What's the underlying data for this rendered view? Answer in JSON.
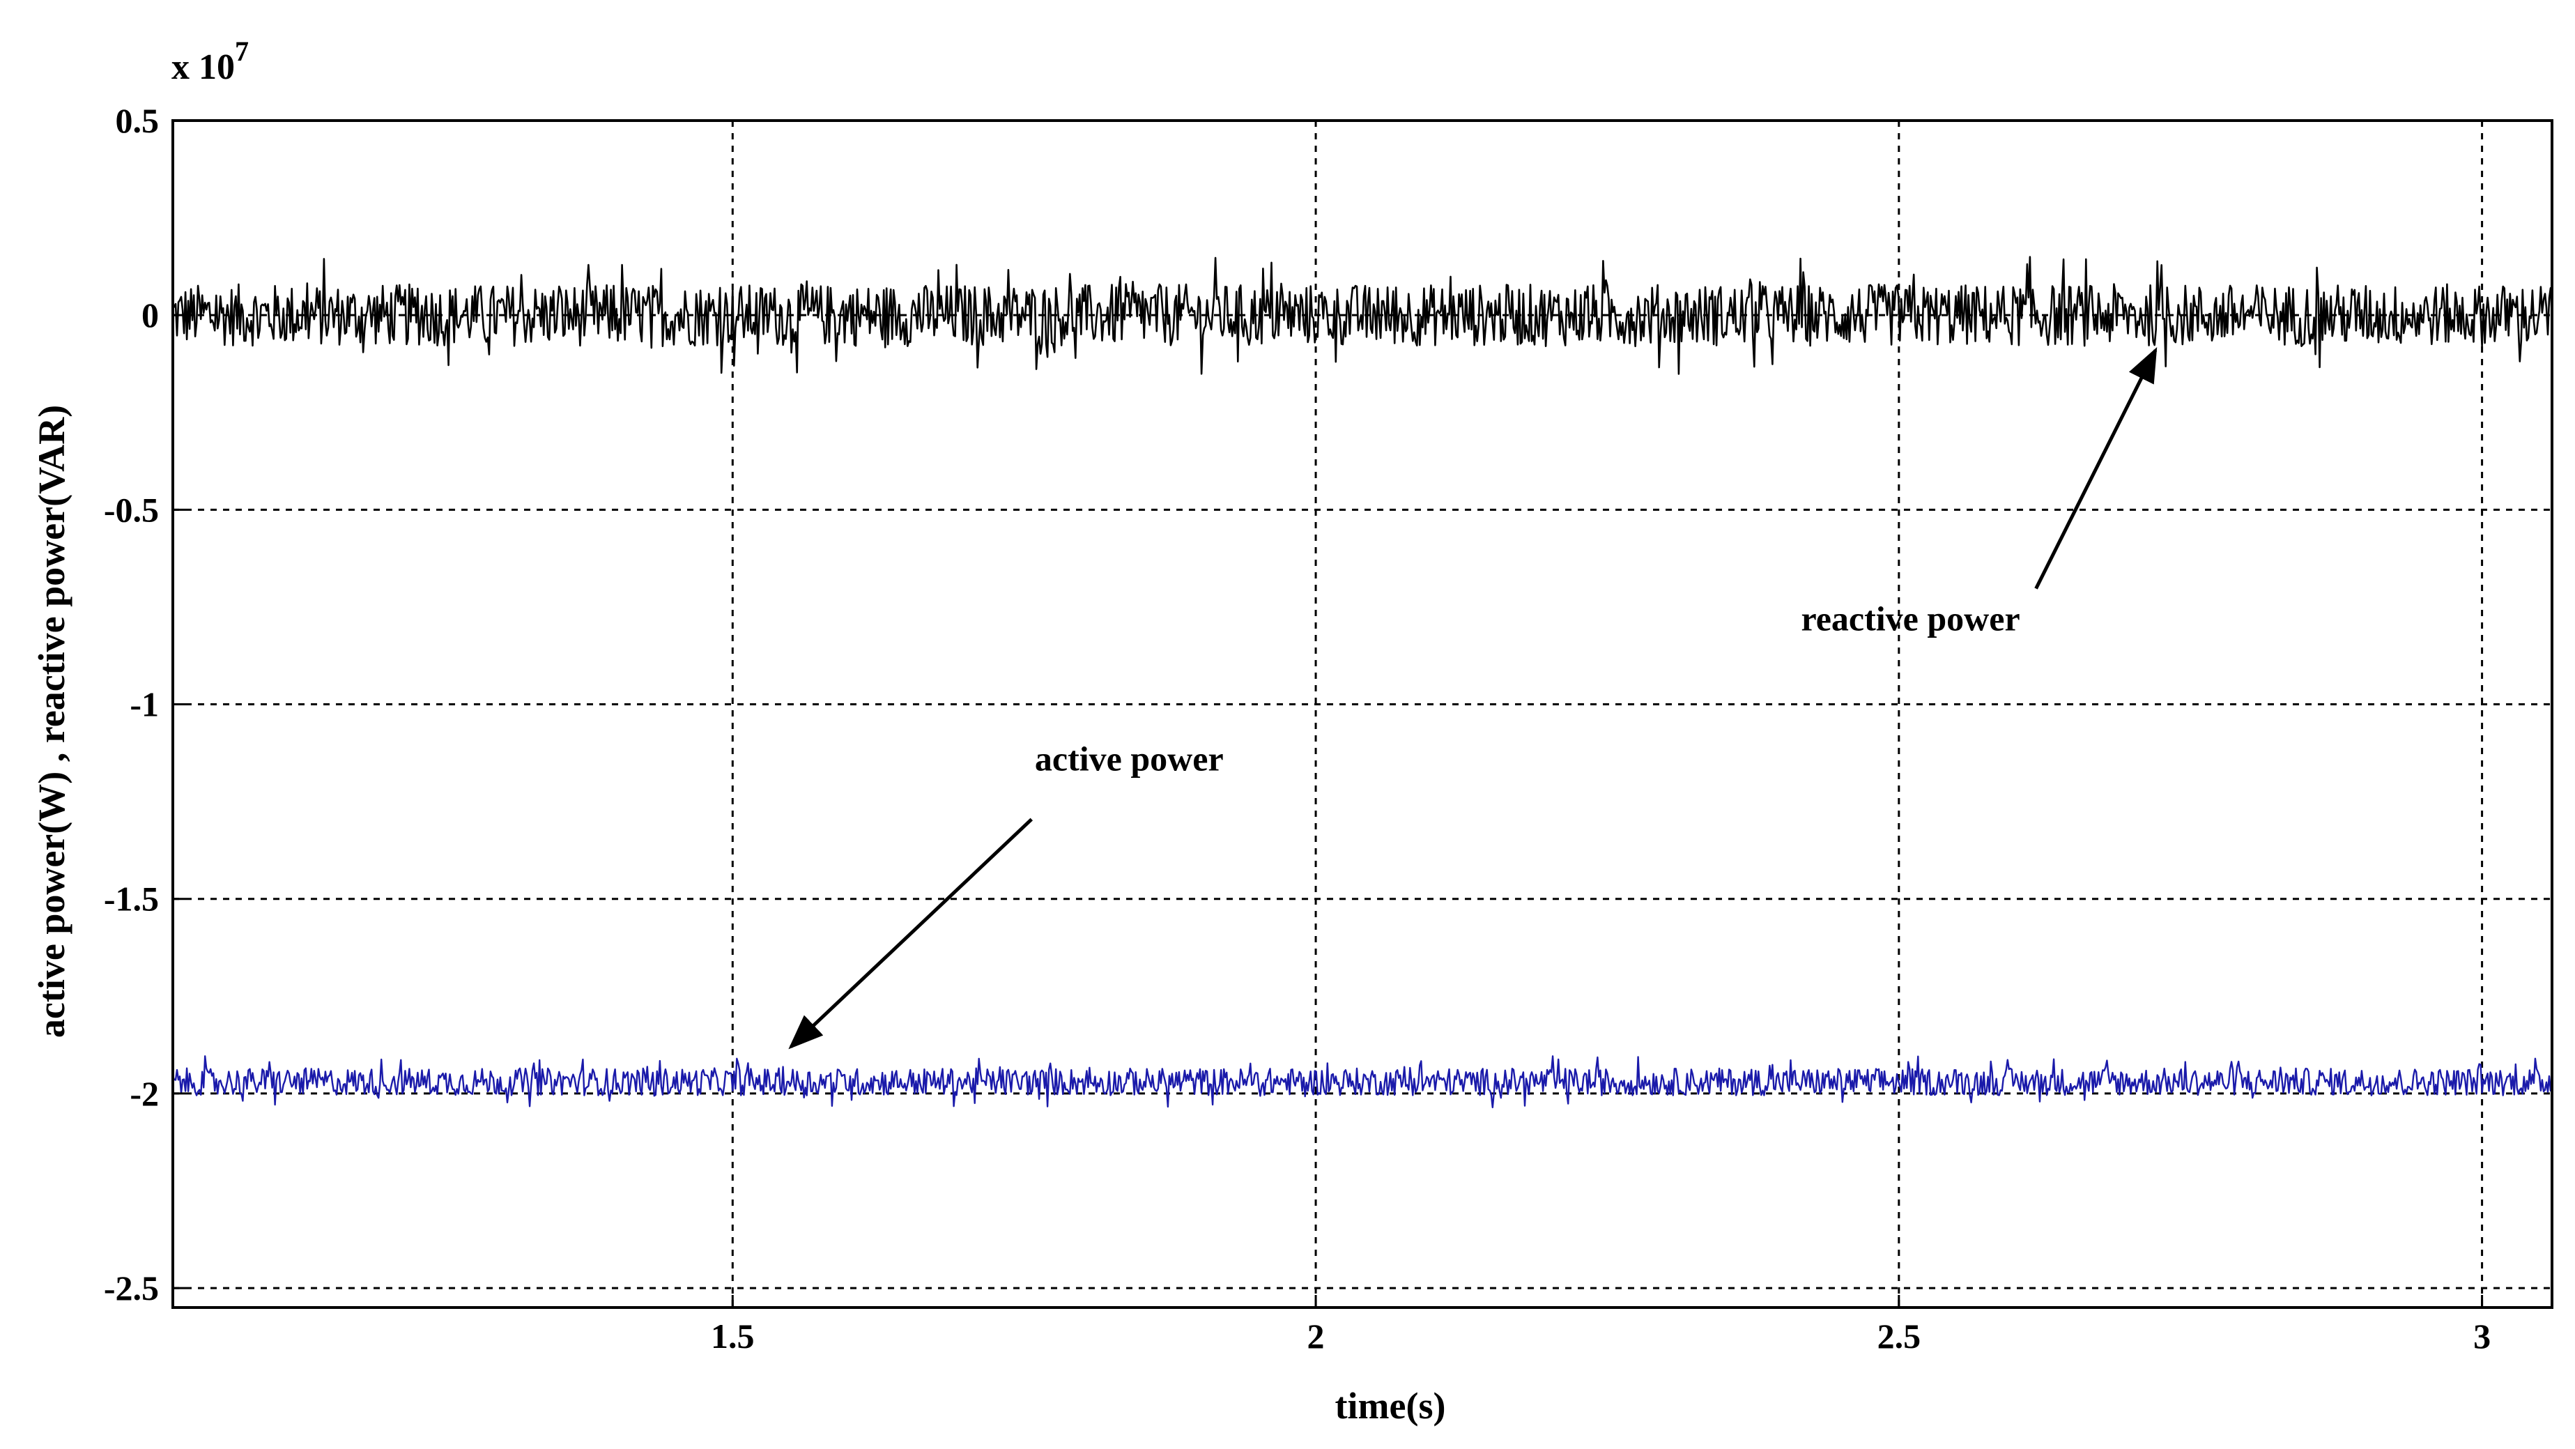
{
  "chart_data": {
    "type": "line",
    "xlabel": "time(s)",
    "ylabel": "active power(W) , reactive power(VAR)",
    "exponent_base": "x 10",
    "exponent_power": "7",
    "xlim": [
      1.02,
      3.06
    ],
    "ylim": [
      -2.55,
      0.5
    ],
    "x_ticks": [
      1.5,
      2,
      2.5,
      3
    ],
    "x_tick_labels": [
      "1.5",
      "2",
      "2.5",
      "3"
    ],
    "y_ticks": [
      0.5,
      0,
      -0.5,
      -1,
      -1.5,
      -2,
      -2.5
    ],
    "y_tick_labels": [
      "0.5",
      "0",
      "-0.5",
      "-1",
      "-1.5",
      "-2",
      "-2.5"
    ],
    "grid": true,
    "grid_style": "dotted",
    "series": [
      {
        "name": "reactive power",
        "color": "#000000",
        "mean": 0.0,
        "noise_amplitude": 0.08,
        "x_range": [
          1.02,
          3.06
        ]
      },
      {
        "name": "active power",
        "color": "#1a1aaa",
        "mean": -1.97,
        "noise_amplitude": 0.035,
        "x_range": [
          1.02,
          3.06
        ]
      }
    ],
    "annotations": [
      {
        "text": "reactive power",
        "arrow_to_x": 2.72,
        "arrow_to_y": -0.09,
        "text_x": 2.51,
        "text_y": -0.81
      },
      {
        "text": "active power",
        "arrow_to_x": 1.55,
        "arrow_to_y": -1.88,
        "text_x": 1.84,
        "text_y": -1.17
      }
    ]
  }
}
